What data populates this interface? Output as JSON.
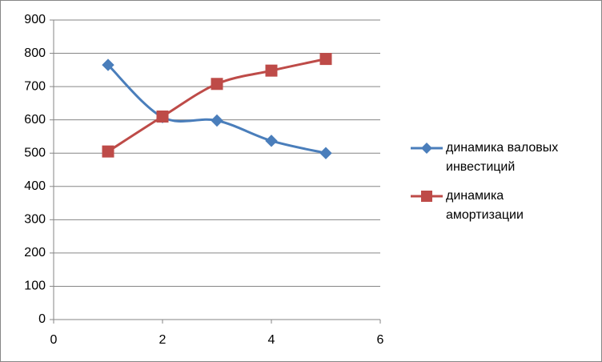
{
  "chart_data": {
    "type": "line",
    "smooth": true,
    "grid": true,
    "x": [
      1,
      2,
      3,
      4,
      5
    ],
    "series": [
      {
        "name": "динамика валовых инвестиций",
        "color": "#4a7ebb",
        "marker": "diamond",
        "values": [
          765,
          608,
          598,
          537,
          500
        ]
      },
      {
        "name": "динамика амортизации",
        "color": "#be4b48",
        "marker": "square",
        "values": [
          505,
          610,
          708,
          748,
          783
        ]
      }
    ],
    "xlim": [
      0,
      6
    ],
    "xticks": [
      0,
      2,
      4,
      6
    ],
    "ylim": [
      0,
      900
    ],
    "yticks": [
      0,
      100,
      200,
      300,
      400,
      500,
      600,
      700,
      800,
      900
    ],
    "legend": "right"
  }
}
